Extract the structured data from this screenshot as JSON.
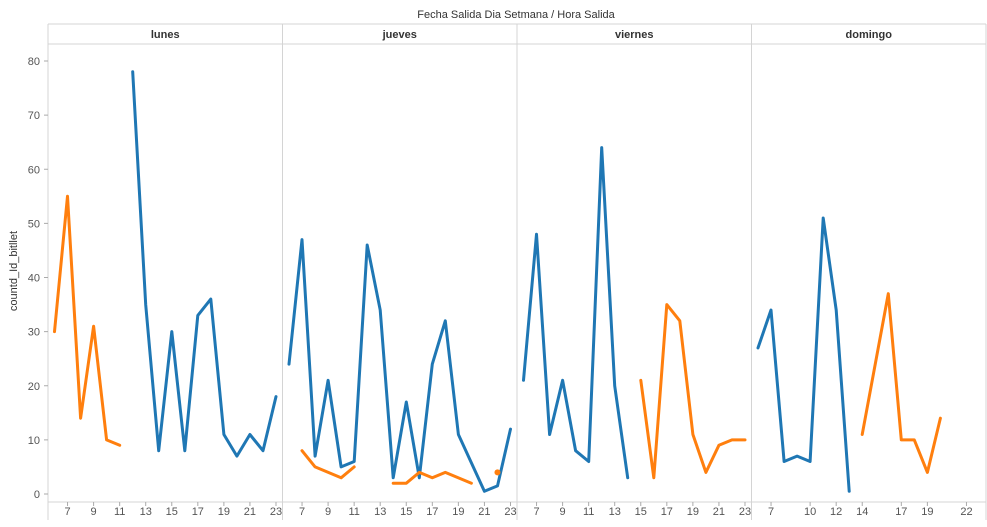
{
  "chart_data": {
    "type": "line",
    "title": "Fecha Salida Dia Setmana  /  Hora Salida",
    "ylabel": "countd_Id_bitllet",
    "ylim": [
      0,
      85
    ],
    "y_ticks": [
      0,
      10,
      20,
      30,
      40,
      50,
      60,
      70,
      80
    ],
    "grid": false,
    "colors": {
      "blue": "#1f77b4",
      "orange": "#ff7f0e"
    },
    "panels": [
      {
        "name": "lunes",
        "xlim": [
          5.5,
          23.5
        ],
        "x_ticks": [
          7,
          9,
          11,
          13,
          15,
          17,
          19,
          21,
          23
        ],
        "series": [
          {
            "color": "orange",
            "points": [
              [
                6,
                30
              ],
              [
                7,
                55
              ],
              [
                8,
                14
              ],
              [
                9,
                31
              ],
              [
                10,
                10
              ],
              [
                11,
                9
              ]
            ]
          },
          {
            "color": "blue",
            "points": [
              [
                12,
                78
              ],
              [
                13,
                35
              ],
              [
                14,
                8
              ],
              [
                15,
                30
              ],
              [
                16,
                8
              ],
              [
                17,
                33
              ],
              [
                18,
                36
              ],
              [
                19,
                11
              ],
              [
                20,
                7
              ],
              [
                21,
                11
              ],
              [
                22,
                8
              ],
              [
                23,
                18
              ]
            ]
          }
        ]
      },
      {
        "name": "jueves",
        "xlim": [
          5.5,
          23.5
        ],
        "x_ticks": [
          7,
          9,
          11,
          13,
          15,
          17,
          19,
          21,
          23
        ],
        "series": [
          {
            "color": "blue",
            "points": [
              [
                6,
                24
              ],
              [
                7,
                47
              ],
              [
                8,
                7
              ],
              [
                9,
                21
              ],
              [
                10,
                5
              ],
              [
                11,
                6
              ],
              [
                12,
                46
              ],
              [
                13,
                34
              ],
              [
                14,
                3
              ],
              [
                15,
                17
              ],
              [
                16,
                3
              ],
              [
                17,
                24
              ],
              [
                18,
                32
              ],
              [
                19,
                11
              ],
              [
                21,
                0.5
              ],
              [
                22,
                1.5
              ],
              [
                23,
                12
              ]
            ]
          },
          {
            "color": "orange",
            "points": [
              [
                7,
                8
              ],
              [
                8,
                5
              ],
              [
                10,
                3
              ],
              [
                11,
                5
              ]
            ]
          },
          {
            "color": "orange",
            "points": [
              [
                14,
                2
              ],
              [
                15,
                2
              ],
              [
                16,
                4
              ],
              [
                17,
                3
              ],
              [
                18,
                4
              ],
              [
                20,
                2
              ]
            ]
          },
          {
            "color": "orange",
            "points": [
              [
                22,
                4
              ]
            ]
          }
        ]
      },
      {
        "name": "viernes",
        "xlim": [
          5.5,
          23.5
        ],
        "x_ticks": [
          7,
          9,
          11,
          13,
          15,
          17,
          19,
          21,
          23
        ],
        "series": [
          {
            "color": "blue",
            "points": [
              [
                6,
                21
              ],
              [
                7,
                48
              ],
              [
                8,
                11
              ],
              [
                9,
                21
              ],
              [
                10,
                8
              ],
              [
                11,
                6
              ],
              [
                12,
                64
              ],
              [
                13,
                20
              ],
              [
                14,
                3
              ]
            ]
          },
          {
            "color": "orange",
            "points": [
              [
                15,
                21
              ],
              [
                16,
                3
              ],
              [
                17,
                35
              ],
              [
                18,
                32
              ],
              [
                19,
                11
              ],
              [
                20,
                4
              ],
              [
                21,
                9
              ],
              [
                22,
                10
              ],
              [
                23,
                10
              ]
            ]
          }
        ]
      },
      {
        "name": "domingo",
        "xlim": [
          5.5,
          23.5
        ],
        "x_ticks": [
          7,
          10,
          12,
          14,
          17,
          19,
          22
        ],
        "series": [
          {
            "color": "blue",
            "points": [
              [
                6,
                27
              ],
              [
                7,
                34
              ],
              [
                8,
                6
              ],
              [
                9,
                7
              ],
              [
                10,
                6
              ],
              [
                11,
                51
              ],
              [
                12,
                34
              ],
              [
                13,
                0.5
              ]
            ]
          },
          {
            "color": "orange",
            "points": [
              [
                14,
                11
              ],
              [
                16,
                37
              ],
              [
                17,
                10
              ],
              [
                18,
                10
              ],
              [
                19,
                4
              ],
              [
                20,
                14
              ]
            ]
          }
        ]
      }
    ]
  }
}
